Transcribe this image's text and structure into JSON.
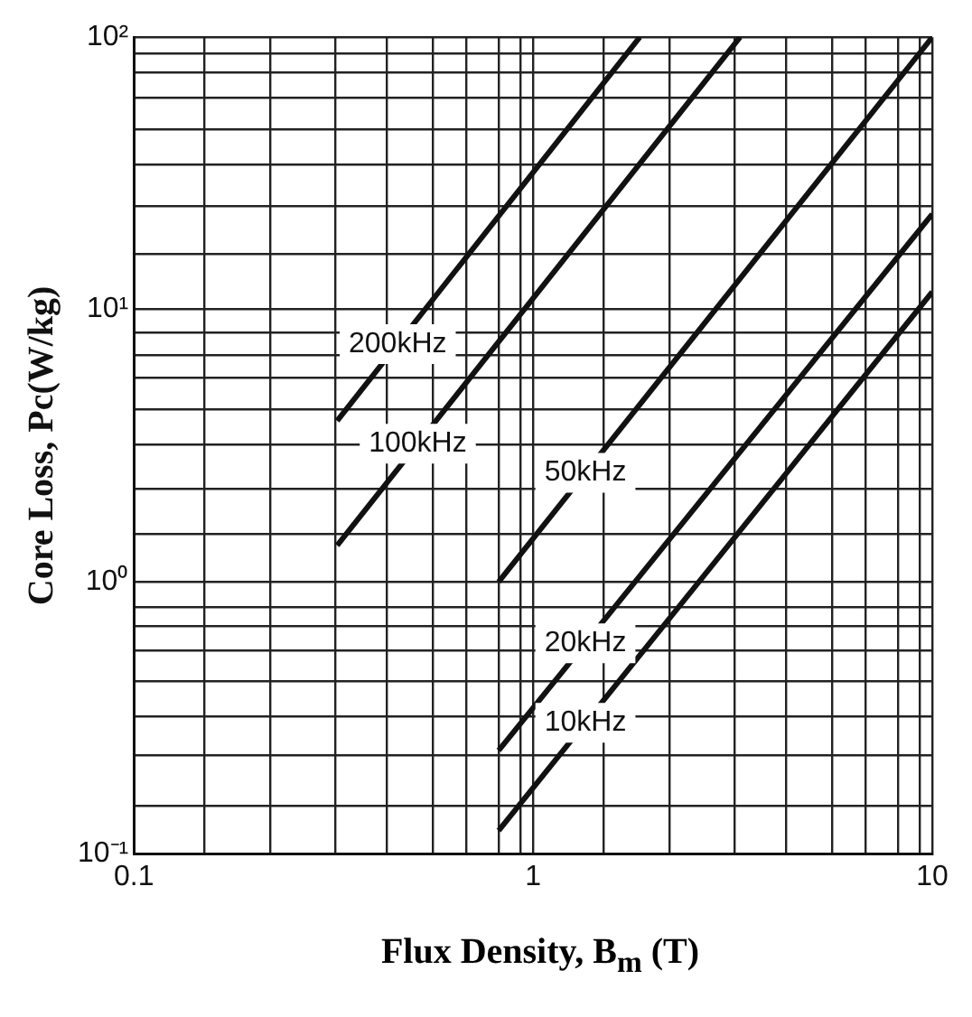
{
  "chart_data": {
    "type": "line",
    "xlabel": "Flux Density, B$_{m}$ (T)",
    "ylabel": "Core Loss, Pc(W/kg)",
    "log": "xy",
    "grid": true,
    "legend": false,
    "marker": "none",
    "line_style": "solid",
    "xlim": [
      0.1,
      10
    ],
    "ylim": [
      0.1,
      100
    ],
    "xticks": [
      0.1,
      {
        "value": 0.15,
        "label": null
      },
      {
        "value": 0.22,
        "label": null
      },
      {
        "value": 0.32,
        "label": null
      },
      {
        "value": 0.43,
        "label": null
      },
      {
        "value": 0.56,
        "label": null
      },
      {
        "value": 0.68,
        "label": null
      },
      {
        "value": 0.82,
        "label": null
      },
      {
        "value": 0.93,
        "label": null
      },
      1,
      {
        "value": 1.5,
        "label": null
      },
      {
        "value": 2.2,
        "label": null
      },
      {
        "value": 3.2,
        "label": null
      },
      {
        "value": 4.3,
        "label": null
      },
      {
        "value": 5.6,
        "label": null
      },
      {
        "value": 6.8,
        "label": null
      },
      {
        "value": 8.2,
        "label": null
      },
      {
        "value": 9.3,
        "label": null
      },
      10
    ],
    "yticks": [
      {
        "value": 0.1,
        "label": "10⁻¹"
      },
      {
        "value": 0.15,
        "label": null
      },
      {
        "value": 0.23,
        "label": null
      },
      {
        "value": 0.32,
        "label": null
      },
      {
        "value": 0.43,
        "label": null
      },
      {
        "value": 0.56,
        "label": null
      },
      {
        "value": 0.69,
        "label": null
      },
      {
        "value": 0.81,
        "label": null
      },
      {
        "value": 1,
        "label": "10⁰"
      },
      {
        "value": 1.5,
        "label": null
      },
      {
        "value": 2.2,
        "label": null
      },
      {
        "value": 3.2,
        "label": null
      },
      {
        "value": 4.3,
        "label": null
      },
      {
        "value": 5.6,
        "label": null
      },
      {
        "value": 6.8,
        "label": null
      },
      {
        "value": 8.2,
        "label": null
      },
      {
        "value": 10,
        "label": "10¹"
      },
      {
        "value": 16,
        "label": null
      },
      {
        "value": 24,
        "label": null
      },
      {
        "value": 34,
        "label": null
      },
      {
        "value": 46,
        "label": null
      },
      {
        "value": 60,
        "label": null
      },
      {
        "value": 74,
        "label": null
      },
      {
        "value": 87,
        "label": null
      },
      {
        "value": 100,
        "label": "10²"
      }
    ],
    "series": [
      {
        "name": "200kHz",
        "color": "#111111",
        "x": [
          0.323,
          1.85
        ],
        "values": [
          3.9,
          100
        ]
      },
      {
        "name": "100kHz",
        "color": "#111111",
        "x": [
          0.323,
          3.3
        ],
        "values": [
          1.36,
          100
        ]
      },
      {
        "name": "50kHz",
        "color": "#111111",
        "x": [
          0.82,
          10
        ],
        "values": [
          1.0,
          100
        ]
      },
      {
        "name": "20kHz",
        "color": "#111111",
        "x": [
          0.82,
          10
        ],
        "values": [
          0.24,
          22.4
        ]
      },
      {
        "name": "10kHz",
        "color": "#111111",
        "x": [
          0.82,
          10
        ],
        "values": [
          0.122,
          11.6
        ]
      }
    ]
  }
}
